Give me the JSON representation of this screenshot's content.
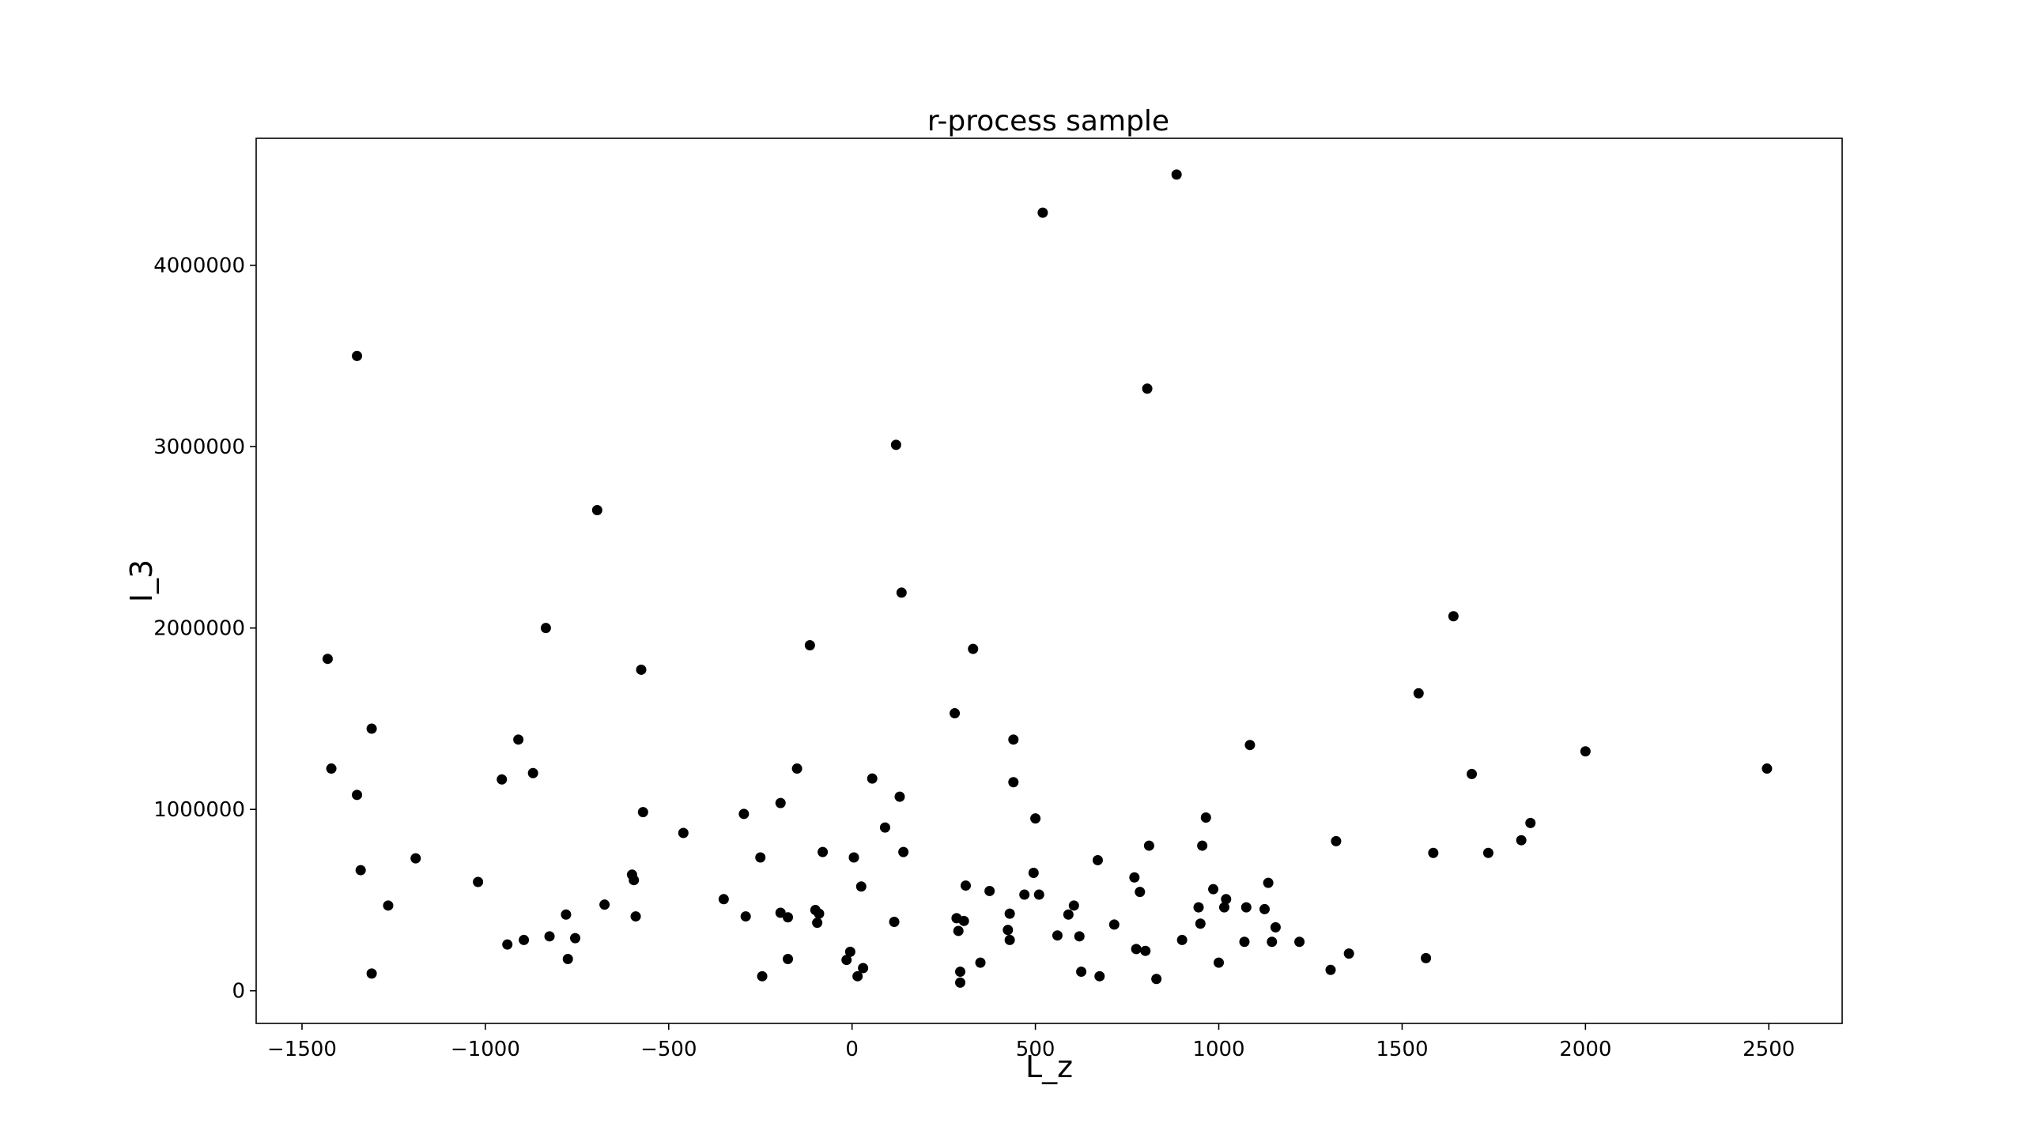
{
  "chart_data": {
    "type": "scatter",
    "title": "r-process sample",
    "xlabel": "L_z",
    "ylabel": "I_3",
    "xlim": [
      -1625,
      2700
    ],
    "ylim": [
      -180000,
      4700000
    ],
    "x_ticks": [
      -1500,
      -1000,
      -500,
      0,
      500,
      1000,
      1500,
      2000,
      2500
    ],
    "x_tick_labels": [
      "−1500",
      "−1000",
      "−500",
      "0",
      "500",
      "1000",
      "1500",
      "2000",
      "2500"
    ],
    "y_ticks": [
      0,
      1000000,
      2000000,
      3000000,
      4000000
    ],
    "y_tick_labels": [
      "0",
      "1000000",
      "2000000",
      "3000000",
      "4000000"
    ],
    "grid": false,
    "marker_color": "#000000",
    "points": [
      [
        -1430,
        1830000
      ],
      [
        -1420,
        1225000
      ],
      [
        -1350,
        3500000
      ],
      [
        -1350,
        1080000
      ],
      [
        -1340,
        665000
      ],
      [
        -1310,
        1445000
      ],
      [
        -1310,
        95000
      ],
      [
        -1265,
        470000
      ],
      [
        -1190,
        730000
      ],
      [
        -1020,
        600000
      ],
      [
        -955,
        1165000
      ],
      [
        -940,
        255000
      ],
      [
        -910,
        1385000
      ],
      [
        -895,
        280000
      ],
      [
        -870,
        1200000
      ],
      [
        -835,
        2000000
      ],
      [
        -825,
        300000
      ],
      [
        -780,
        420000
      ],
      [
        -775,
        175000
      ],
      [
        -755,
        290000
      ],
      [
        -695,
        2650000
      ],
      [
        -675,
        475000
      ],
      [
        -600,
        640000
      ],
      [
        -595,
        610000
      ],
      [
        -590,
        410000
      ],
      [
        -575,
        1770000
      ],
      [
        -570,
        985000
      ],
      [
        -460,
        870000
      ],
      [
        -350,
        505000
      ],
      [
        -295,
        975000
      ],
      [
        -290,
        410000
      ],
      [
        -250,
        735000
      ],
      [
        -245,
        80000
      ],
      [
        -195,
        1035000
      ],
      [
        -195,
        430000
      ],
      [
        -175,
        405000
      ],
      [
        -175,
        175000
      ],
      [
        -150,
        1225000
      ],
      [
        -115,
        1905000
      ],
      [
        -100,
        445000
      ],
      [
        -95,
        375000
      ],
      [
        -90,
        425000
      ],
      [
        -80,
        765000
      ],
      [
        -15,
        170000
      ],
      [
        -5,
        215000
      ],
      [
        5,
        735000
      ],
      [
        15,
        80000
      ],
      [
        25,
        575000
      ],
      [
        30,
        125000
      ],
      [
        55,
        1170000
      ],
      [
        90,
        900000
      ],
      [
        115,
        380000
      ],
      [
        120,
        3010000
      ],
      [
        130,
        1070000
      ],
      [
        135,
        2195000
      ],
      [
        140,
        765000
      ],
      [
        280,
        1530000
      ],
      [
        285,
        400000
      ],
      [
        290,
        330000
      ],
      [
        295,
        45000
      ],
      [
        295,
        105000
      ],
      [
        305,
        385000
      ],
      [
        310,
        580000
      ],
      [
        330,
        1885000
      ],
      [
        350,
        155000
      ],
      [
        375,
        550000
      ],
      [
        425,
        335000
      ],
      [
        430,
        425000
      ],
      [
        430,
        280000
      ],
      [
        440,
        1385000
      ],
      [
        440,
        1150000
      ],
      [
        470,
        530000
      ],
      [
        495,
        650000
      ],
      [
        500,
        950000
      ],
      [
        510,
        530000
      ],
      [
        520,
        4290000
      ],
      [
        560,
        305000
      ],
      [
        590,
        420000
      ],
      [
        605,
        470000
      ],
      [
        620,
        300000
      ],
      [
        625,
        105000
      ],
      [
        670,
        720000
      ],
      [
        675,
        80000
      ],
      [
        715,
        365000
      ],
      [
        770,
        625000
      ],
      [
        775,
        230000
      ],
      [
        785,
        545000
      ],
      [
        800,
        220000
      ],
      [
        805,
        3320000
      ],
      [
        810,
        800000
      ],
      [
        830,
        65000
      ],
      [
        885,
        4500000
      ],
      [
        900,
        280000
      ],
      [
        945,
        460000
      ],
      [
        950,
        370000
      ],
      [
        955,
        800000
      ],
      [
        965,
        955000
      ],
      [
        985,
        560000
      ],
      [
        1000,
        155000
      ],
      [
        1015,
        460000
      ],
      [
        1020,
        505000
      ],
      [
        1070,
        270000
      ],
      [
        1075,
        460000
      ],
      [
        1085,
        1355000
      ],
      [
        1125,
        450000
      ],
      [
        1135,
        595000
      ],
      [
        1145,
        270000
      ],
      [
        1155,
        350000
      ],
      [
        1220,
        270000
      ],
      [
        1305,
        115000
      ],
      [
        1320,
        825000
      ],
      [
        1355,
        205000
      ],
      [
        1545,
        1640000
      ],
      [
        1565,
        180000
      ],
      [
        1585,
        760000
      ],
      [
        1640,
        2065000
      ],
      [
        1690,
        1195000
      ],
      [
        1735,
        760000
      ],
      [
        1825,
        830000
      ],
      [
        1850,
        925000
      ],
      [
        2000,
        1320000
      ],
      [
        2495,
        1225000
      ]
    ]
  }
}
